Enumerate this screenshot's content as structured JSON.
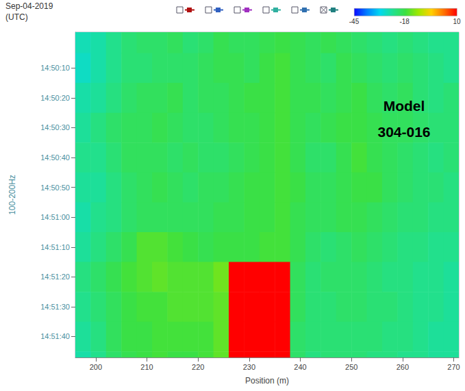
{
  "chart_data": {
    "type": "heatmap",
    "title": "Sep-04-2019",
    "subtitle": "(UTC)",
    "x_label": "Position (m)",
    "y_label": "100-200Hz",
    "annotation": "Model\n304-016",
    "xlim": [
      196,
      271
    ],
    "xticks": [
      200,
      210,
      220,
      230,
      240,
      250,
      260,
      270
    ],
    "ylim": [
      53398,
      53507
    ],
    "yticks": [
      {
        "value": 53410,
        "label": "14:50:10"
      },
      {
        "value": 53420,
        "label": "14:50:20"
      },
      {
        "value": 53430,
        "label": "14:50:30"
      },
      {
        "value": 53440,
        "label": "14:50:40"
      },
      {
        "value": 53450,
        "label": "14:50:50"
      },
      {
        "value": 53460,
        "label": "14:51:00"
      },
      {
        "value": 53470,
        "label": "14:51:10"
      },
      {
        "value": 53480,
        "label": "14:51:20"
      },
      {
        "value": 53490,
        "label": "14:51:30"
      },
      {
        "value": 53500,
        "label": "14:51:40"
      }
    ],
    "cells": {
      "x": [
        197.5,
        200.5,
        203.5,
        206.5,
        209.5,
        212.5,
        215.5,
        218.5,
        221.5,
        224.5,
        227.5,
        230.5,
        233.5,
        236.5,
        239.5,
        242.5,
        245.5,
        248.5,
        251.5,
        254.5,
        257.5,
        260.5,
        263.5,
        266.5,
        269.5
      ],
      "y": [
        53400,
        53410,
        53420,
        53430,
        53440,
        53450,
        53460,
        53470,
        53480,
        53490,
        53500,
        53510
      ],
      "values": [
        [
          -27,
          -26,
          -24,
          -22,
          -21,
          -21,
          -20,
          -22,
          -21,
          -19,
          -20,
          -20,
          -19,
          -18,
          -19,
          -20,
          -19,
          -20,
          -21,
          -22,
          -23,
          -22,
          -23,
          -24,
          -24
        ],
        [
          -28,
          -26,
          -24,
          -22,
          -22,
          -21,
          -21,
          -21,
          -20,
          -19,
          -19,
          -20,
          -18,
          -17,
          -19,
          -20,
          -21,
          -19,
          -20,
          -21,
          -22,
          -21,
          -22,
          -23,
          -24
        ],
        [
          -26,
          -25,
          -23,
          -21,
          -20,
          -20,
          -19,
          -21,
          -20,
          -20,
          -19,
          -18,
          -18,
          -17,
          -19,
          -19,
          -20,
          -19,
          -18,
          -20,
          -21,
          -20,
          -22,
          -23,
          -22
        ],
        [
          -25,
          -23,
          -21,
          -20,
          -20,
          -19,
          -20,
          -21,
          -21,
          -20,
          -19,
          -19,
          -18,
          -17,
          -19,
          -20,
          -19,
          -18,
          -18,
          -19,
          -20,
          -20,
          -21,
          -22,
          -22
        ],
        [
          -24,
          -24,
          -22,
          -20,
          -20,
          -20,
          -21,
          -20,
          -21,
          -21,
          -20,
          -19,
          -18,
          -17,
          -19,
          -21,
          -21,
          -19,
          -17,
          -19,
          -20,
          -21,
          -22,
          -23,
          -22
        ],
        [
          -25,
          -25,
          -23,
          -21,
          -20,
          -19,
          -20,
          -21,
          -20,
          -20,
          -19,
          -18,
          -18,
          -17,
          -18,
          -20,
          -20,
          -19,
          -18,
          -18,
          -20,
          -21,
          -22,
          -22,
          -23
        ],
        [
          -26,
          -24,
          -23,
          -21,
          -20,
          -20,
          -20,
          -20,
          -20,
          -19,
          -19,
          -18,
          -18,
          -17,
          -19,
          -20,
          -20,
          -19,
          -19,
          -20,
          -21,
          -22,
          -22,
          -23,
          -23
        ],
        [
          -25,
          -23,
          -21,
          -19,
          -16,
          -16,
          -17,
          -18,
          -19,
          -18,
          -18,
          -18,
          -17,
          -17,
          -19,
          -21,
          -22,
          -21,
          -20,
          -21,
          -22,
          -23,
          -23,
          -24,
          -24
        ],
        [
          -23,
          -21,
          -19,
          -17,
          -16,
          -15,
          -16,
          -16,
          -16,
          -14,
          10,
          10,
          10,
          10,
          -20,
          -22,
          -21,
          -21,
          -21,
          -22,
          -23,
          -23,
          -24,
          -24,
          -25
        ],
        [
          -24,
          -22,
          -20,
          -18,
          -17,
          -17,
          -16,
          -16,
          -16,
          -15,
          10,
          10,
          10,
          10,
          -20,
          -22,
          -22,
          -21,
          -21,
          -22,
          -22,
          -23,
          -24,
          -24,
          -25
        ],
        [
          -25,
          -23,
          -20,
          -18,
          -18,
          -17,
          -17,
          -17,
          -17,
          -15,
          10,
          10,
          10,
          10,
          -21,
          -22,
          -22,
          -22,
          -22,
          -22,
          -23,
          -23,
          -24,
          -25,
          -25
        ],
        [
          -26,
          -24,
          -21,
          -19,
          -18,
          -17,
          -18,
          -18,
          -17,
          -15,
          10,
          10,
          10,
          10,
          -21,
          -23,
          -22,
          -22,
          -22,
          -23,
          -23,
          -24,
          -24,
          -25,
          -25
        ]
      ]
    },
    "colorbar": {
      "range": [
        -45,
        10
      ],
      "ticks": [
        -45,
        -18,
        10
      ]
    }
  }
}
